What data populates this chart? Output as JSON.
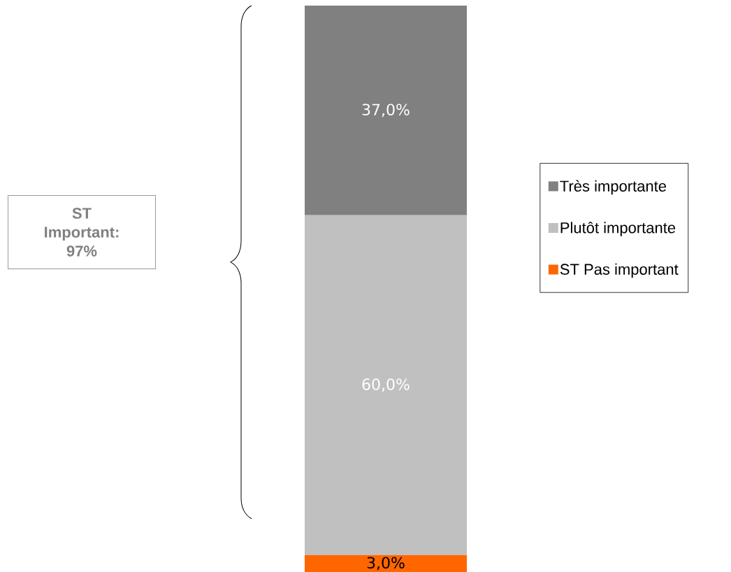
{
  "chart_data": {
    "type": "bar",
    "stacked": true,
    "categories": [
      null
    ],
    "series": [
      {
        "name": "ST Pas important",
        "color": "#ff6600",
        "values": [
          3.0
        ],
        "value_labels": [
          "3,0%"
        ]
      },
      {
        "name": "Plutôt importante",
        "color": "#c0c0c0",
        "values": [
          60.0
        ],
        "value_labels": [
          "60,0%"
        ]
      },
      {
        "name": "Très importante",
        "color": "#808080",
        "values": [
          37.0
        ],
        "value_labels": [
          "37,0%"
        ]
      }
    ],
    "legend": "right",
    "annotations": [
      "ST Important: 97%"
    ]
  }
}
